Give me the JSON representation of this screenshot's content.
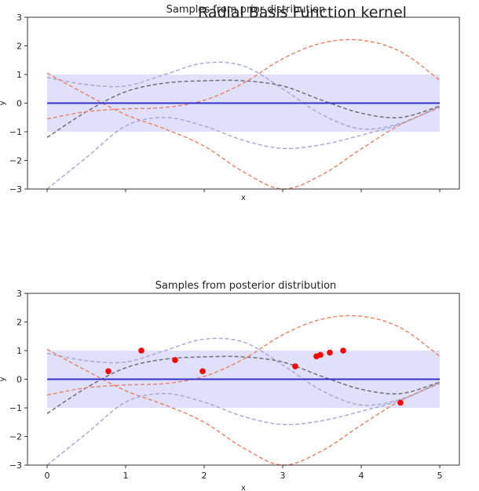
{
  "figure": {
    "title": "Radial Basis Function kernel"
  },
  "chart_data": [
    {
      "type": "line",
      "title": "Samples from prior distribution",
      "xlabel": "x",
      "ylabel": "y",
      "xlim": [
        -0.25,
        5.25
      ],
      "ylim": [
        -3,
        3
      ],
      "xticks": [
        "0",
        "1",
        "2",
        "3",
        "4",
        "5"
      ],
      "show_xtick_labels": false,
      "yticks": [
        "3",
        "2",
        "1",
        "0",
        "−1",
        "−2",
        "−3"
      ],
      "mean": {
        "x": [
          0,
          5
        ],
        "y": [
          0,
          0
        ],
        "color": "#3333cc"
      },
      "std_band": {
        "lower": -1,
        "upper": 1,
        "color": "#e0e0fa"
      },
      "series": [
        {
          "color": "#a9a9d6",
          "x": [
            0,
            0.5,
            1,
            1.5,
            2,
            2.5,
            3,
            3.5,
            4,
            4.5,
            5
          ],
          "y": [
            0.9,
            0.65,
            0.6,
            1.0,
            1.4,
            1.3,
            0.5,
            -0.4,
            -0.9,
            -0.7,
            -0.1
          ]
        },
        {
          "color": "#707078",
          "x": [
            0,
            0.5,
            1,
            1.5,
            2,
            2.5,
            3,
            3.5,
            4,
            4.5,
            5
          ],
          "y": [
            -1.2,
            -0.3,
            0.4,
            0.7,
            0.78,
            0.78,
            0.6,
            0.1,
            -0.35,
            -0.5,
            -0.1
          ]
        },
        {
          "color": "#e8866c",
          "x": [
            0,
            0.5,
            1,
            1.5,
            2,
            2.5,
            3,
            3.5,
            4,
            4.5,
            5
          ],
          "y": [
            1.05,
            0.3,
            -0.4,
            -0.9,
            -1.5,
            -2.4,
            -3.0,
            -2.5,
            -1.6,
            -0.75,
            -0.15
          ]
        },
        {
          "color": "#a9a9d6",
          "x": [
            0,
            0.5,
            1,
            1.5,
            2,
            2.5,
            3,
            3.5,
            4,
            4.5,
            5
          ],
          "y": [
            -3.0,
            -1.9,
            -0.8,
            -0.5,
            -0.8,
            -1.3,
            -1.58,
            -1.45,
            -1.12,
            -0.73,
            -0.12
          ]
        },
        {
          "color": "#e8866c",
          "x": [
            0,
            0.5,
            1,
            1.5,
            2,
            2.5,
            3,
            3.5,
            4,
            4.5,
            5
          ],
          "y": [
            -0.55,
            -0.3,
            -0.2,
            -0.15,
            0.1,
            0.7,
            1.55,
            2.1,
            2.2,
            1.8,
            0.8
          ]
        }
      ],
      "points": []
    },
    {
      "type": "line",
      "title": "Samples from posterior distribution",
      "xlabel": "x",
      "ylabel": "y",
      "xlim": [
        -0.25,
        5.25
      ],
      "ylim": [
        -3,
        3
      ],
      "xticks": [
        "0",
        "1",
        "2",
        "3",
        "4",
        "5"
      ],
      "show_xtick_labels": true,
      "yticks": [
        "3",
        "2",
        "1",
        "0",
        "−1",
        "−2",
        "−3"
      ],
      "mean": {
        "x": [
          0,
          5
        ],
        "y": [
          0,
          0
        ],
        "color": "#3333cc"
      },
      "std_band": {
        "lower": -1,
        "upper": 1,
        "color": "#e0e0fa"
      },
      "series": [
        {
          "color": "#a9a9d6",
          "x": [
            0,
            0.5,
            1,
            1.5,
            2,
            2.5,
            3,
            3.5,
            4,
            4.5,
            5
          ],
          "y": [
            0.9,
            0.65,
            0.6,
            1.0,
            1.4,
            1.3,
            0.5,
            -0.4,
            -0.9,
            -0.7,
            -0.1
          ]
        },
        {
          "color": "#707078",
          "x": [
            0,
            0.5,
            1,
            1.5,
            2,
            2.5,
            3,
            3.5,
            4,
            4.5,
            5
          ],
          "y": [
            -1.2,
            -0.3,
            0.4,
            0.7,
            0.78,
            0.78,
            0.6,
            0.1,
            -0.35,
            -0.5,
            -0.1
          ]
        },
        {
          "color": "#e8866c",
          "x": [
            0,
            0.5,
            1,
            1.5,
            2,
            2.5,
            3,
            3.5,
            4,
            4.5,
            5
          ],
          "y": [
            1.05,
            0.3,
            -0.4,
            -0.9,
            -1.5,
            -2.4,
            -3.0,
            -2.5,
            -1.6,
            -0.75,
            -0.15
          ]
        },
        {
          "color": "#a9a9d6",
          "x": [
            0,
            0.5,
            1,
            1.5,
            2,
            2.5,
            3,
            3.5,
            4,
            4.5,
            5
          ],
          "y": [
            -3.0,
            -1.9,
            -0.8,
            -0.5,
            -0.8,
            -1.3,
            -1.58,
            -1.45,
            -1.12,
            -0.73,
            -0.12
          ]
        },
        {
          "color": "#e8866c",
          "x": [
            0,
            0.5,
            1,
            1.5,
            2,
            2.5,
            3,
            3.5,
            4,
            4.5,
            5
          ],
          "y": [
            -0.55,
            -0.3,
            -0.2,
            -0.15,
            0.1,
            0.7,
            1.55,
            2.1,
            2.2,
            1.8,
            0.8
          ]
        }
      ],
      "points": {
        "color": "#ff0000",
        "x": [
          0.78,
          1.2,
          1.63,
          1.98,
          3.16,
          3.43,
          3.48,
          3.6,
          3.77,
          4.5
        ],
        "y": [
          0.28,
          1.0,
          0.67,
          0.28,
          0.45,
          0.8,
          0.85,
          0.93,
          1.0,
          -0.82
        ]
      }
    }
  ]
}
